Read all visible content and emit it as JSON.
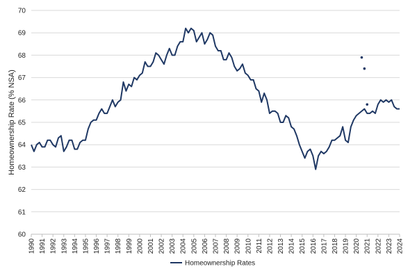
{
  "colors": {
    "line": "#1f3864",
    "gridline": "#d9d9d9",
    "axis": "#bfbfbf"
  },
  "chart_data": {
    "type": "line",
    "title": "",
    "ylabel": "Homeownership Rate (% NSA)",
    "xlabel": "",
    "ylim": [
      60,
      70
    ],
    "yticks": [
      60,
      61,
      62,
      63,
      64,
      65,
      66,
      67,
      68,
      69,
      70
    ],
    "xlim": [
      1990,
      2024
    ],
    "xticks": [
      "1990",
      "1991",
      "1992",
      "1993",
      "1994",
      "1995",
      "1996",
      "1997",
      "1998",
      "1999",
      "2000",
      "2001",
      "2002",
      "2003",
      "2004",
      "2005",
      "2006",
      "2007",
      "2008",
      "2009",
      "2010",
      "2011",
      "2012",
      "2013",
      "2014",
      "2015",
      "2016",
      "2017",
      "2018",
      "2019",
      "2020",
      "2021",
      "2022",
      "2023",
      "2024"
    ],
    "grid": "horizontal",
    "legend_position": "bottom",
    "series": [
      {
        "name": "Homeownership Rates",
        "type": "line",
        "x": [
          1990.0,
          1990.25,
          1990.5,
          1990.75,
          1991.0,
          1991.25,
          1991.5,
          1991.75,
          1992.0,
          1992.25,
          1992.5,
          1992.75,
          1993.0,
          1993.25,
          1993.5,
          1993.75,
          1994.0,
          1994.25,
          1994.5,
          1994.75,
          1995.0,
          1995.25,
          1995.5,
          1995.75,
          1996.0,
          1996.25,
          1996.5,
          1996.75,
          1997.0,
          1997.25,
          1997.5,
          1997.75,
          1998.0,
          1998.25,
          1998.5,
          1998.75,
          1999.0,
          1999.25,
          1999.5,
          1999.75,
          2000.0,
          2000.25,
          2000.5,
          2000.75,
          2001.0,
          2001.25,
          2001.5,
          2001.75,
          2002.0,
          2002.25,
          2002.5,
          2002.75,
          2003.0,
          2003.25,
          2003.5,
          2003.75,
          2004.0,
          2004.25,
          2004.5,
          2004.75,
          2005.0,
          2005.25,
          2005.5,
          2005.75,
          2006.0,
          2006.25,
          2006.5,
          2006.75,
          2007.0,
          2007.25,
          2007.5,
          2007.75,
          2008.0,
          2008.25,
          2008.5,
          2008.75,
          2009.0,
          2009.25,
          2009.5,
          2009.75,
          2010.0,
          2010.25,
          2010.5,
          2010.75,
          2011.0,
          2011.25,
          2011.5,
          2011.75,
          2012.0,
          2012.25,
          2012.5,
          2012.75,
          2013.0,
          2013.25,
          2013.5,
          2013.75,
          2014.0,
          2014.25,
          2014.5,
          2014.75,
          2015.0,
          2015.25,
          2015.5,
          2015.75,
          2016.0,
          2016.25,
          2016.5,
          2016.75,
          2017.0,
          2017.25,
          2017.5,
          2017.75,
          2018.0,
          2018.25,
          2018.5,
          2018.75,
          2019.0,
          2019.25,
          2019.5,
          2019.75,
          2020.0,
          2020.25,
          2020.5,
          2020.75,
          2021.0,
          2021.25,
          2021.5,
          2021.75,
          2022.0,
          2022.25,
          2022.5,
          2022.75,
          2023.0,
          2023.25,
          2023.5,
          2023.75,
          2024.0
        ],
        "y": [
          64.0,
          63.7,
          64.0,
          64.1,
          63.9,
          63.9,
          64.2,
          64.2,
          64.0,
          63.9,
          64.3,
          64.4,
          63.7,
          63.9,
          64.2,
          64.2,
          63.8,
          63.8,
          64.1,
          64.2,
          64.2,
          64.7,
          65.0,
          65.1,
          65.1,
          65.4,
          65.6,
          65.4,
          65.4,
          65.7,
          66.0,
          65.7,
          65.9,
          66.0,
          66.8,
          66.4,
          66.7,
          66.6,
          67.0,
          66.9,
          67.1,
          67.2,
          67.7,
          67.5,
          67.5,
          67.7,
          68.1,
          68.0,
          67.8,
          67.6,
          68.0,
          68.3,
          68.0,
          68.0,
          68.4,
          68.6,
          68.6,
          69.2,
          69.0,
          69.2,
          69.1,
          68.6,
          68.8,
          69.0,
          68.5,
          68.7,
          69.0,
          68.9,
          68.4,
          68.2,
          68.2,
          67.8,
          67.8,
          68.1,
          67.9,
          67.5,
          67.3,
          67.4,
          67.6,
          67.2,
          67.1,
          66.9,
          66.9,
          66.5,
          66.4,
          65.9,
          66.3,
          66.0,
          65.4,
          65.5,
          65.5,
          65.4,
          65.0,
          65.0,
          65.3,
          65.2,
          64.8,
          64.7,
          64.4,
          64.0,
          63.7,
          63.4,
          63.7,
          63.8,
          63.5,
          62.9,
          63.5,
          63.7,
          63.6,
          63.7,
          63.9,
          64.2,
          64.2,
          64.3,
          64.4,
          64.8,
          64.2,
          64.1,
          64.8,
          65.1,
          65.3,
          65.4,
          65.5,
          65.6,
          65.4,
          65.4,
          65.5,
          65.4,
          65.8,
          66.0,
          65.9,
          66.0,
          65.9,
          66.0,
          65.7,
          65.6,
          65.6
        ]
      },
      {
        "name": "",
        "type": "scatter",
        "x": [
          2020.5,
          2020.75,
          2021.0
        ],
        "y": [
          67.9,
          67.4,
          65.8
        ]
      }
    ]
  }
}
